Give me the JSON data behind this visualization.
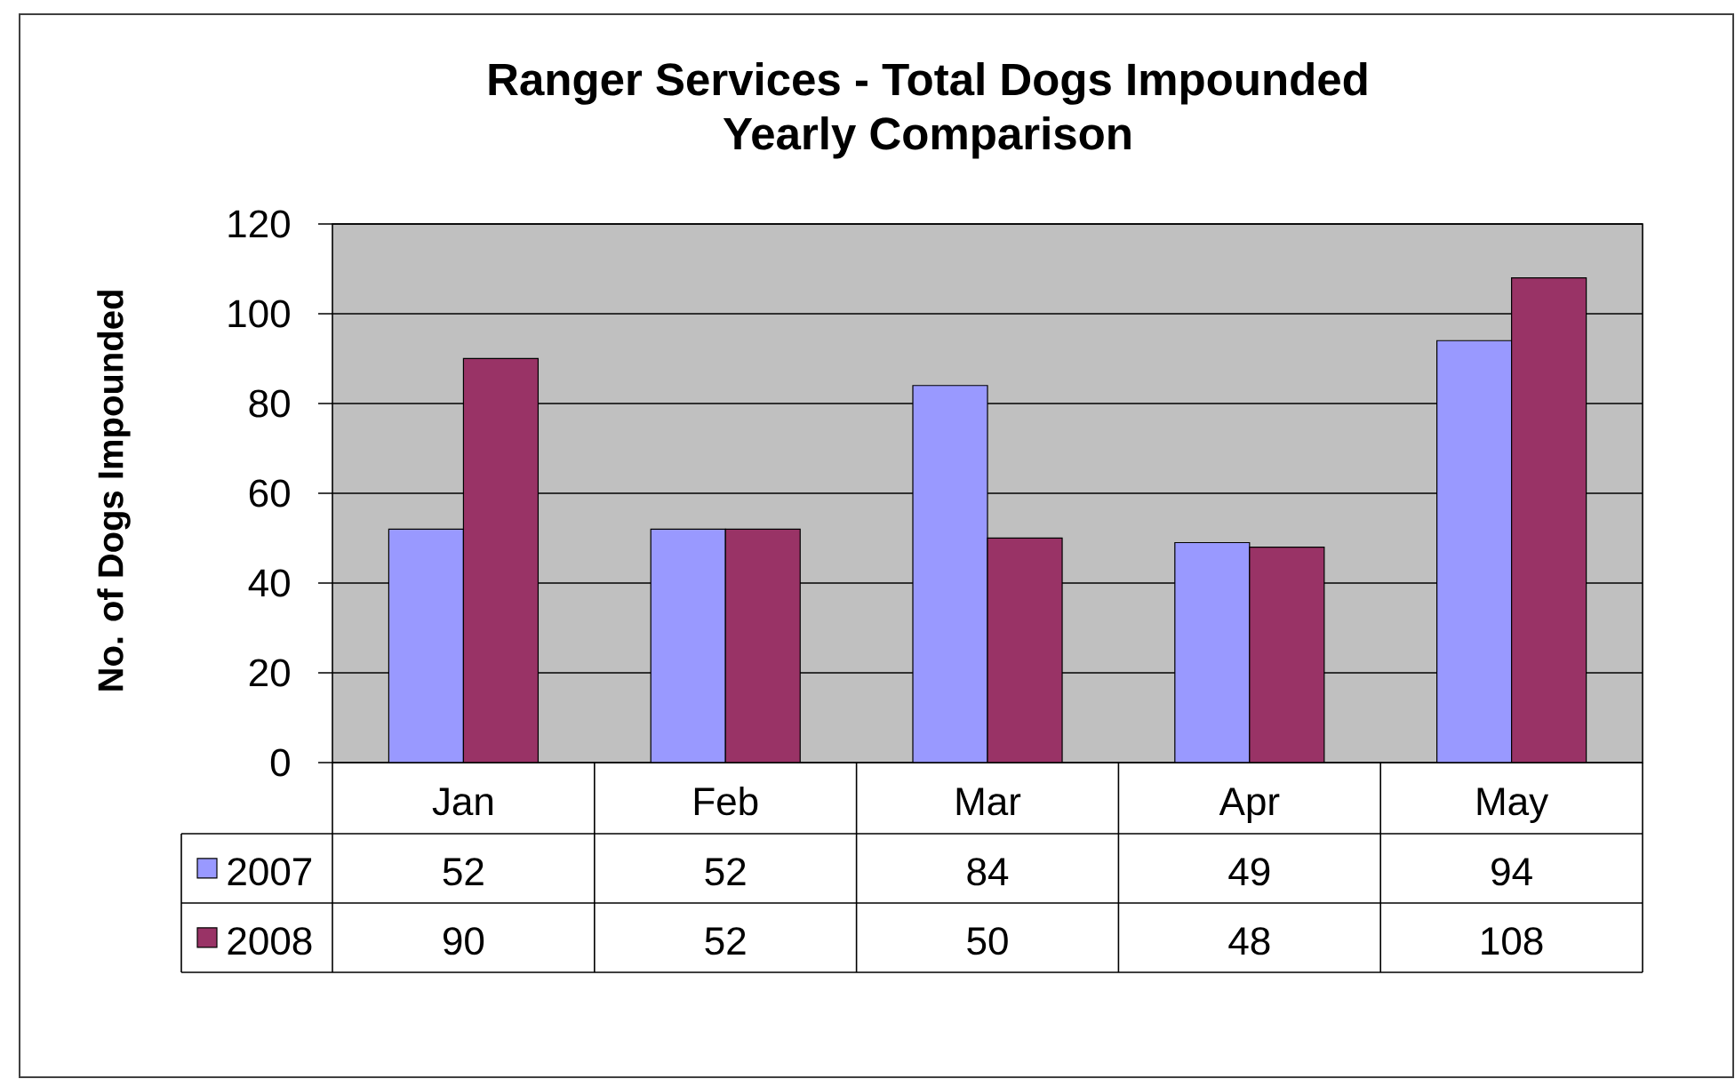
{
  "chart_data": {
    "type": "bar",
    "title": "Ranger Services - Total Dogs Impounded",
    "subtitle": "Yearly Comparison",
    "ylabel": "No. of Dogs Impounded",
    "categories": [
      "Jan",
      "Feb",
      "Mar",
      "Apr",
      "May"
    ],
    "series": [
      {
        "name": "2007",
        "color": "#9999ff",
        "values": [
          52,
          52,
          84,
          49,
          94
        ]
      },
      {
        "name": "2008",
        "color": "#993366",
        "values": [
          90,
          52,
          50,
          48,
          108
        ]
      }
    ],
    "ylim": [
      0,
      120
    ],
    "yticks": [
      0,
      20,
      40,
      60,
      80,
      100,
      120
    ],
    "grid": "y",
    "legend": "bottom",
    "data_labels": true
  }
}
